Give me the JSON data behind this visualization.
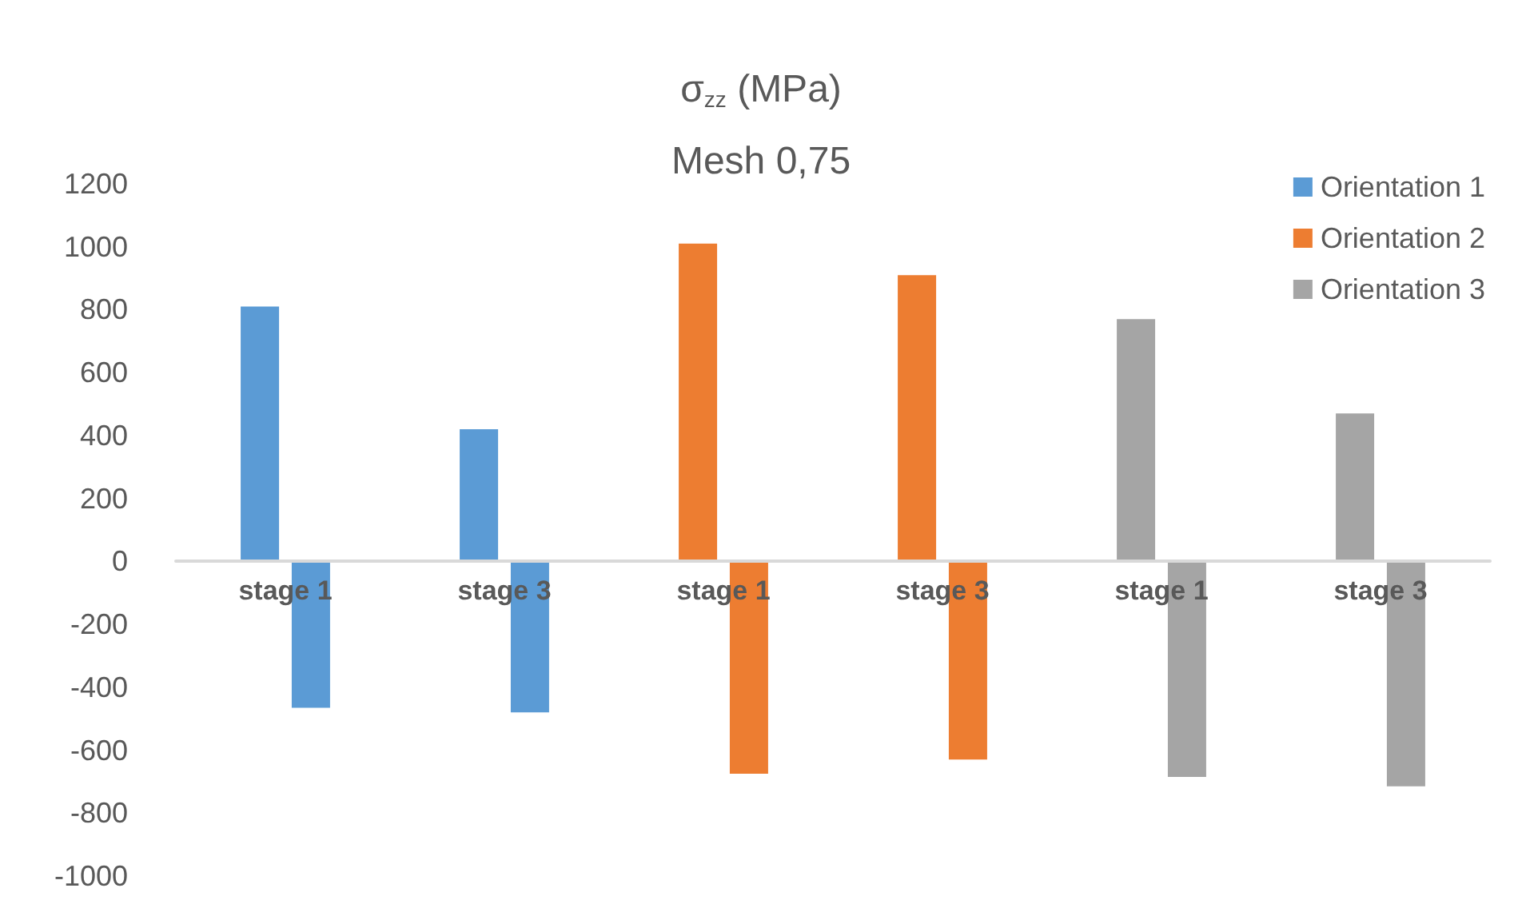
{
  "chart_data": {
    "type": "bar",
    "title": "σ$_{zz}$ (MPa)",
    "subtitle": "Mesh 0,75",
    "categories": [
      "stage 1",
      "stage 3",
      "stage 1",
      "stage 3",
      "stage 1",
      "stage 3"
    ],
    "stacked": true,
    "series": [
      {
        "name": "Orientation 1",
        "color": "#5b9bd5",
        "values": [
          810,
          420,
          null,
          null,
          null,
          null
        ]
      },
      {
        "color": "#5b9bd5",
        "values": [
          -465,
          -480,
          null,
          null,
          null,
          null
        ]
      },
      {
        "name": "Orientation 2",
        "color": "#ed7d31",
        "values": [
          null,
          null,
          1010,
          910,
          null,
          null
        ]
      },
      {
        "color": "#ed7d31",
        "values": [
          null,
          null,
          -675,
          -630,
          null,
          null
        ]
      },
      {
        "name": "Orientation 3",
        "color": "#a5a5a5",
        "values": [
          null,
          null,
          null,
          null,
          770,
          470
        ]
      },
      {
        "color": "#a5a5a5",
        "values": [
          null,
          null,
          null,
          null,
          -685,
          -715
        ]
      }
    ],
    "ylim": [
      -1000,
      1200
    ],
    "yticks": [
      {
        "value": -1000,
        "label": "-1000"
      },
      -800,
      -600,
      -400,
      -200,
      0,
      200,
      400,
      600,
      800,
      {
        "value": 1000,
        "label": "1000"
      },
      {
        "value": 1200,
        "label": "1200"
      }
    ],
    "grid": false,
    "legend": "top right"
  }
}
